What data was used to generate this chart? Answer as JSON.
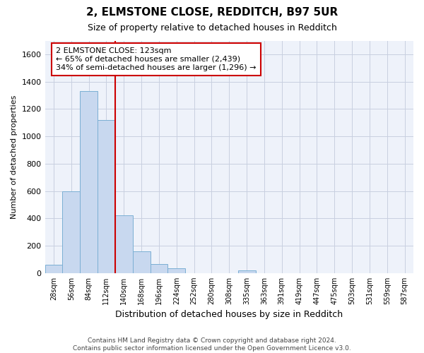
{
  "title": "2, ELMSTONE CLOSE, REDDITCH, B97 5UR",
  "subtitle": "Size of property relative to detached houses in Redditch",
  "xlabel": "Distribution of detached houses by size in Redditch",
  "ylabel": "Number of detached properties",
  "footer_line1": "Contains HM Land Registry data © Crown copyright and database right 2024.",
  "footer_line2": "Contains public sector information licensed under the Open Government Licence v3.0.",
  "bar_labels": [
    "28sqm",
    "56sqm",
    "84sqm",
    "112sqm",
    "140sqm",
    "168sqm",
    "196sqm",
    "224sqm",
    "252sqm",
    "280sqm",
    "308sqm",
    "335sqm",
    "363sqm",
    "391sqm",
    "419sqm",
    "447sqm",
    "475sqm",
    "503sqm",
    "531sqm",
    "559sqm",
    "587sqm"
  ],
  "bar_values": [
    60,
    600,
    1330,
    1120,
    420,
    160,
    65,
    35,
    0,
    0,
    0,
    20,
    0,
    0,
    0,
    0,
    0,
    0,
    0,
    0,
    0
  ],
  "bar_color": "#c8d8ef",
  "bar_edgecolor": "#7bafd4",
  "bar_width": 1.0,
  "grid_color": "#c8cfe0",
  "plot_bg_color": "#eef2fa",
  "fig_bg_color": "#ffffff",
  "ylim": [
    0,
    1700
  ],
  "yticks": [
    0,
    200,
    400,
    600,
    800,
    1000,
    1200,
    1400,
    1600
  ],
  "red_line_color": "#cc0000",
  "annotation_text_line1": "2 ELMSTONE CLOSE: 123sqm",
  "annotation_text_line2": "← 65% of detached houses are smaller (2,439)",
  "annotation_text_line3": "34% of semi-detached houses are larger (1,296) →",
  "annotation_box_color": "#ffffff",
  "annotation_box_edgecolor": "#cc0000",
  "title_fontsize": 11,
  "subtitle_fontsize": 9,
  "xlabel_fontsize": 9,
  "ylabel_fontsize": 8,
  "tick_fontsize": 8,
  "annotation_fontsize": 8,
  "footer_fontsize": 6.5
}
